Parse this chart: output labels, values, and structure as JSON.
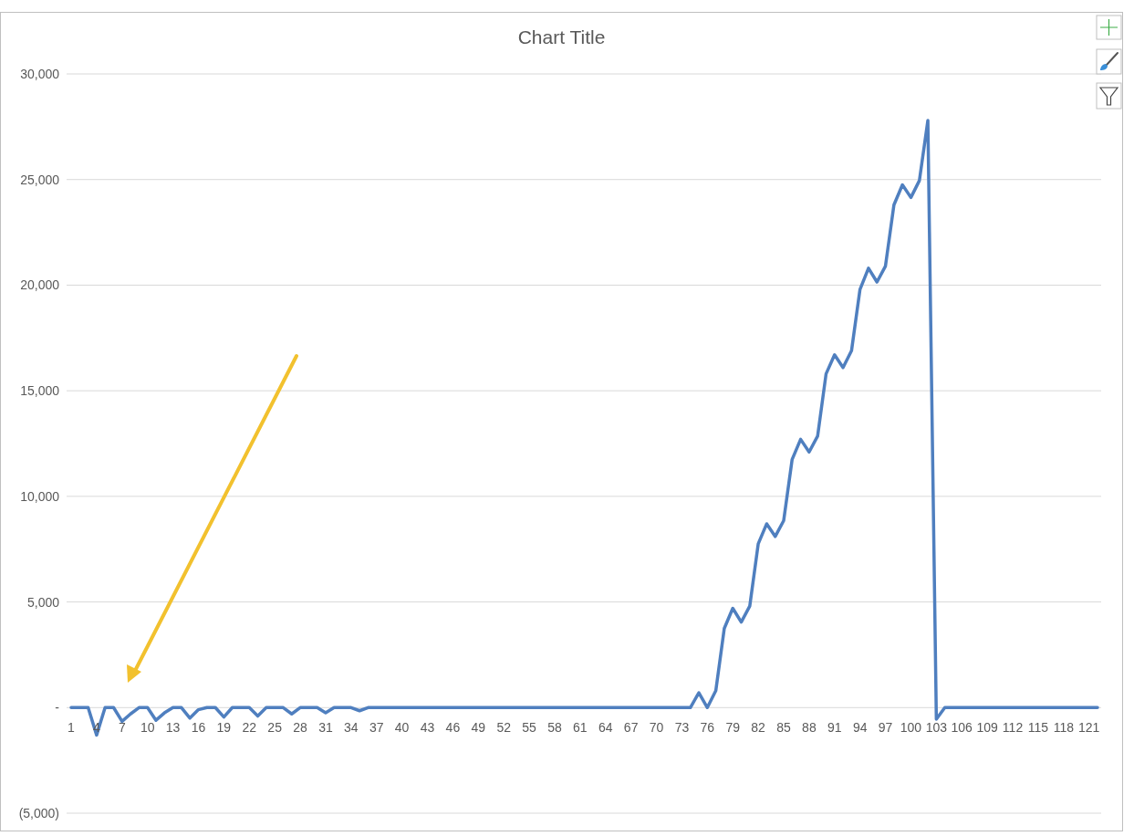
{
  "chart_data": {
    "type": "line",
    "title": "Chart Title",
    "categories": [
      "1",
      null,
      null,
      "4",
      null,
      null,
      "7",
      null,
      null,
      "10",
      null,
      null,
      "13",
      null,
      null,
      "16",
      null,
      null,
      "19",
      null,
      null,
      "22",
      null,
      null,
      "25",
      null,
      null,
      "28",
      null,
      null,
      "31",
      null,
      null,
      "34",
      null,
      null,
      "37",
      null,
      null,
      "40",
      null,
      null,
      "43",
      null,
      null,
      "46",
      null,
      null,
      "49",
      null,
      null,
      "52",
      null,
      null,
      "55",
      null,
      null,
      "58",
      null,
      null,
      "61",
      null,
      null,
      "64",
      null,
      null,
      "67",
      null,
      null,
      "70",
      null,
      null,
      "73",
      null,
      null,
      "76",
      null,
      null,
      "79",
      null,
      null,
      "82",
      null,
      null,
      "85",
      null,
      null,
      "88",
      null,
      null,
      "91",
      null,
      null,
      "94",
      null,
      null,
      "97",
      null,
      null,
      "100",
      null,
      null,
      "103",
      null,
      null,
      "106",
      null,
      null,
      "109",
      null,
      null,
      "112",
      null,
      null,
      "115",
      null,
      null,
      "118",
      null,
      null,
      "121",
      null
    ],
    "series": [
      {
        "color": "#4f7fbf",
        "values": [
          0,
          0,
          0,
          -1300,
          0,
          0,
          -650,
          -300,
          0,
          0,
          -600,
          -250,
          0,
          0,
          -500,
          -100,
          0,
          0,
          -450,
          0,
          0,
          0,
          -400,
          0,
          0,
          0,
          -300,
          0,
          0,
          0,
          -250,
          0,
          0,
          0,
          -150,
          0,
          0,
          0,
          0,
          0,
          0,
          0,
          0,
          0,
          0,
          0,
          0,
          0,
          0,
          0,
          0,
          0,
          0,
          0,
          0,
          0,
          0,
          0,
          0,
          0,
          0,
          0,
          0,
          0,
          0,
          0,
          0,
          0,
          0,
          0,
          0,
          0,
          0,
          0,
          700,
          0,
          800,
          3750,
          4700,
          4050,
          4800,
          7750,
          8700,
          8100,
          8850,
          11750,
          12700,
          12100,
          12850,
          15800,
          16700,
          16100,
          16900,
          19800,
          20800,
          20150,
          20900,
          23800,
          24750,
          24150,
          24950,
          27800,
          -550,
          0,
          0,
          0,
          0,
          0,
          0,
          0,
          0,
          0,
          0,
          0,
          0,
          0,
          0,
          0,
          0,
          0,
          0,
          0
        ]
      }
    ],
    "ylim": [
      -5000,
      30000
    ],
    "yticks": [
      {
        "value": -5000,
        "label": "(5,000)"
      },
      {
        "value": 0,
        "label": "-"
      },
      {
        "value": 5000,
        "label": "5,000"
      },
      {
        "value": 10000,
        "label": "10,000"
      },
      {
        "value": 15000,
        "label": "15,000"
      },
      {
        "value": 20000,
        "label": "20,000"
      },
      {
        "value": 25000,
        "label": "25,000"
      },
      {
        "value": 30000,
        "label": "30,000"
      }
    ],
    "grid": "y",
    "legend": false,
    "marker": "none",
    "line_style": "solid"
  }
}
